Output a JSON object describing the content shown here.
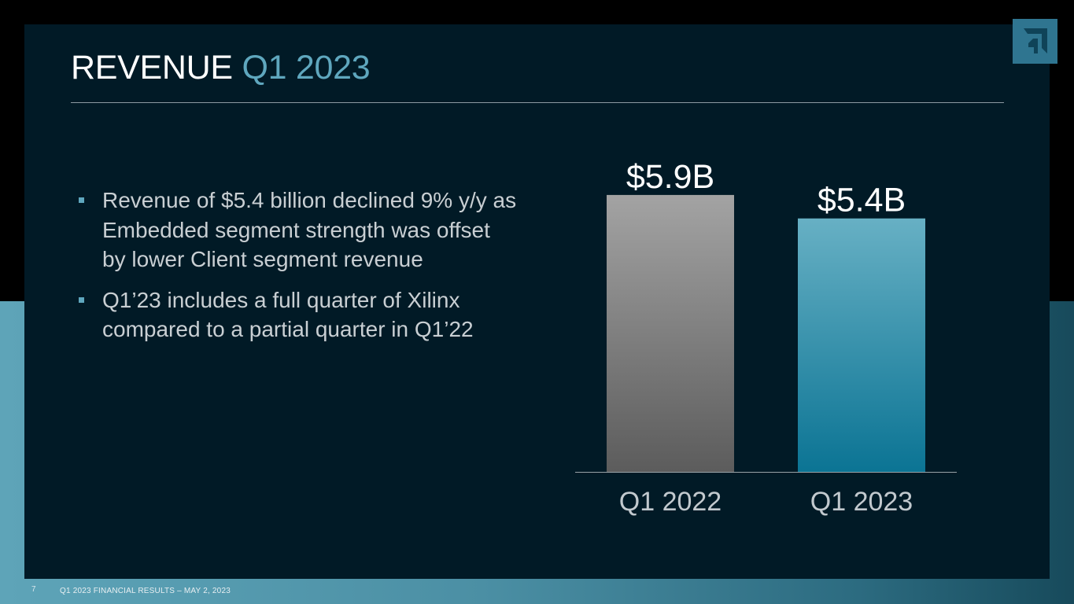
{
  "slide": {
    "title_main": "REVENUE",
    "title_accent": "Q1 2023",
    "bullets": [
      "Revenue of $5.4 billion declined 9% y/y as Embedded segment strength was offset by lower Client segment revenue",
      "Q1’23 includes a full quarter of Xilinx compared to a partial quarter in Q1’22"
    ],
    "page_number": "7",
    "footer": "Q1 2023 FINANCIAL RESULTS – MAY 2, 2023",
    "logo_icon": "amd-arrow-logo-icon"
  },
  "colors": {
    "background": "#011a26",
    "accent": "#5fa7be",
    "bar_2022_top": "#a3a3a3",
    "bar_2022_bottom": "#5c5c5c",
    "bar_2023_top": "#67b0c4",
    "bar_2023_bottom": "#0b7494"
  },
  "chart_data": {
    "type": "bar",
    "categories": [
      "Q1 2022",
      "Q1 2023"
    ],
    "values": [
      5.9,
      5.4
    ],
    "data_labels": [
      "$5.9B",
      "$5.4B"
    ],
    "unit": "billion USD",
    "title": "",
    "xlabel": "",
    "ylabel": "",
    "ylim": [
      0,
      6.2
    ],
    "grid": false,
    "legend": "none"
  }
}
